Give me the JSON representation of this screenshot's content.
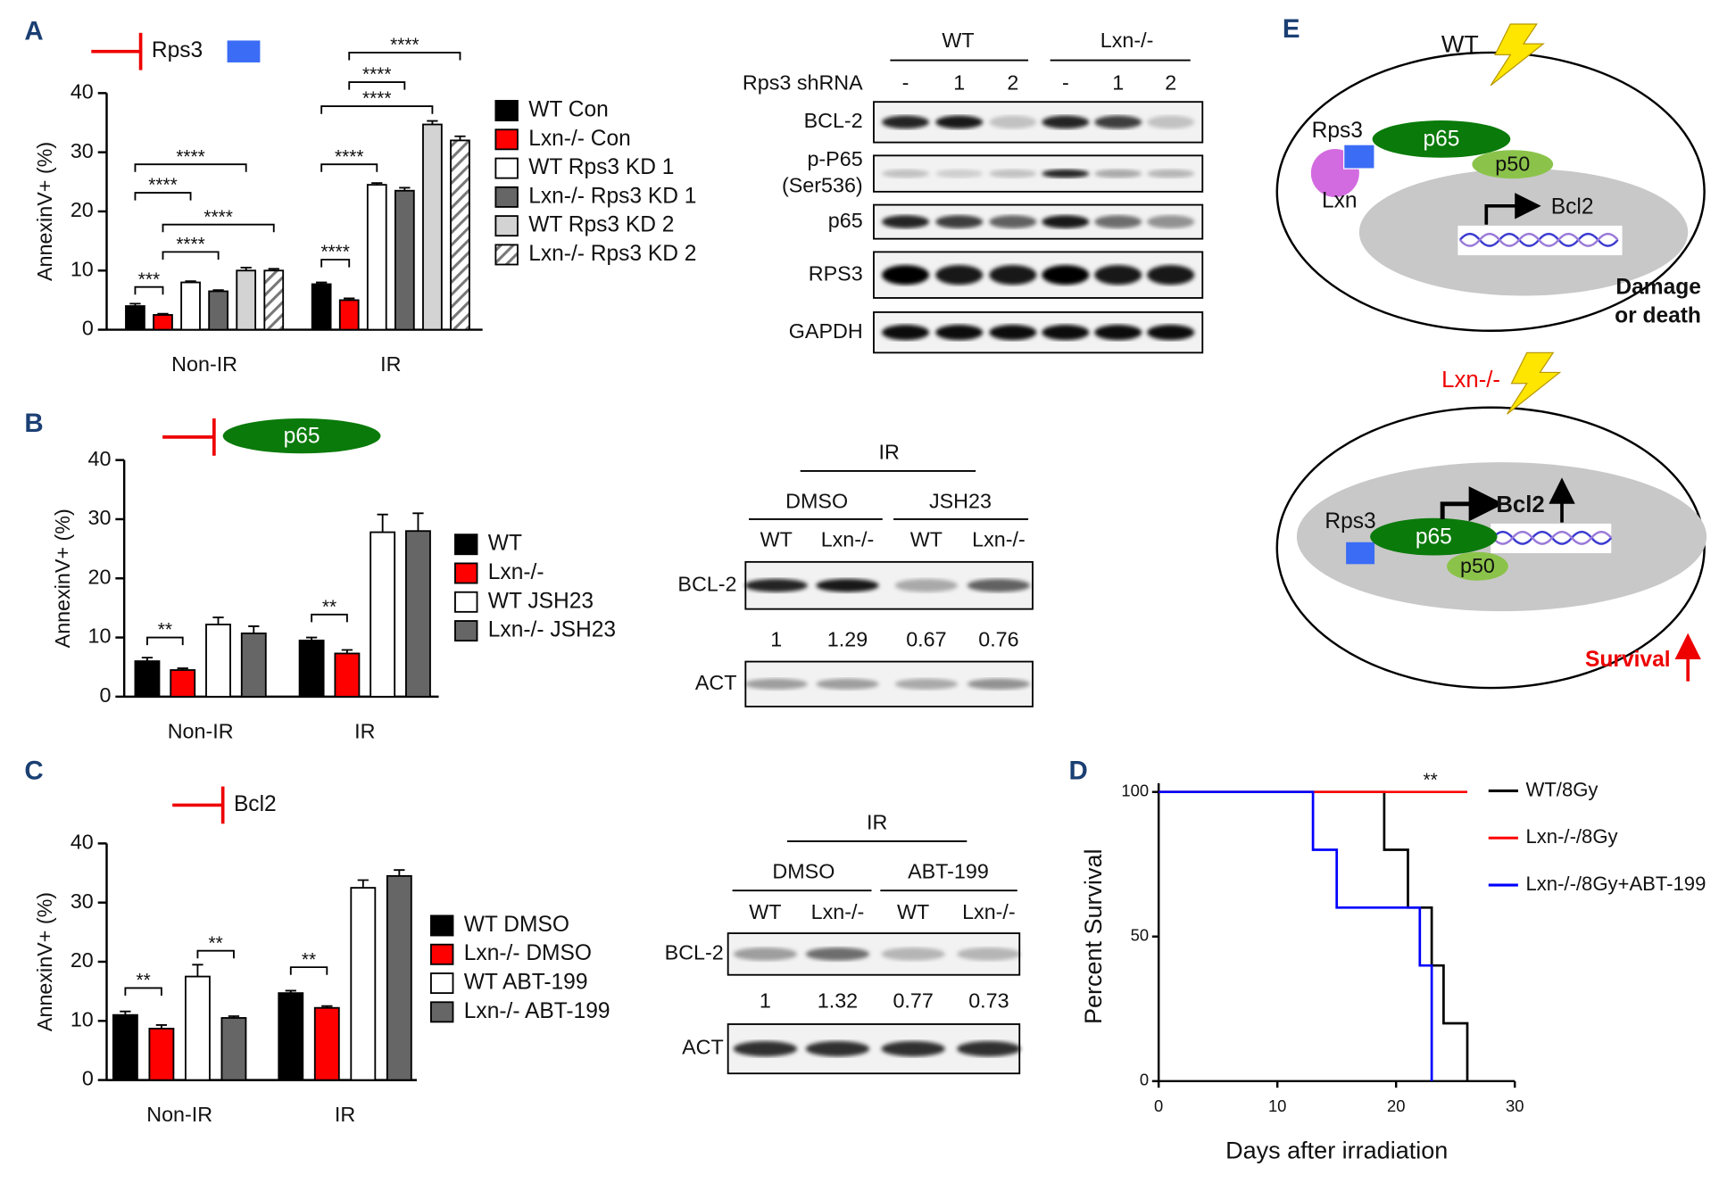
{
  "panels": [
    "A",
    "B",
    "C",
    "D",
    "E"
  ],
  "chart_data": [
    {
      "type": "bar",
      "inhibitor": "Rps3",
      "ylabel": "AnnexinV+ (%)",
      "categories": [
        "Non-IR",
        "IR"
      ],
      "ylim": [
        0,
        40
      ],
      "yticks": [
        0,
        10,
        20,
        30,
        40
      ],
      "series": [
        {
          "name": "WT Con",
          "color": "#000000",
          "values": [
            4,
            7.7
          ],
          "errors": [
            0.4,
            0.3
          ]
        },
        {
          "name": "Lxn-/- Con",
          "color": "#ff0000",
          "values": [
            2.5,
            5
          ],
          "errors": [
            0.2,
            0.3
          ]
        },
        {
          "name": "WT Rps3 KD 1",
          "color": "#ffffff",
          "values": [
            8,
            24.5
          ],
          "errors": [
            0.2,
            0.3
          ]
        },
        {
          "name": "Lxn-/- Rps3 KD 1",
          "color": "#666666",
          "values": [
            6.5,
            23.5
          ],
          "errors": [
            0.2,
            0.5
          ]
        },
        {
          "name": "WT Rps3 KD 2",
          "color": "#d3d3d3",
          "values": [
            10,
            34.7
          ],
          "errors": [
            0.5,
            0.6
          ]
        },
        {
          "name": "Lxn-/- Rps3 KD 2",
          "color": "#777777",
          "hatch": true,
          "values": [
            10,
            32
          ],
          "errors": [
            0.3,
            0.7
          ]
        }
      ],
      "annotations": [
        "***",
        "****",
        "****",
        "****",
        "****",
        "****",
        "****",
        "****",
        "****",
        "****"
      ]
    },
    {
      "type": "bar",
      "inhibitor": "p65",
      "ylabel": "AnnexinV+ (%)",
      "categories": [
        "Non-IR",
        "IR"
      ],
      "ylim": [
        0,
        40
      ],
      "yticks": [
        0,
        10,
        20,
        30,
        40
      ],
      "series": [
        {
          "name": "WT",
          "color": "#000000",
          "values": [
            6,
            9.5
          ],
          "errors": [
            0.6,
            0.5
          ]
        },
        {
          "name": "Lxn-/-",
          "color": "#ff0000",
          "values": [
            4.5,
            7.3
          ],
          "errors": [
            0.3,
            0.6
          ]
        },
        {
          "name": "WT JSH23",
          "color": "#ffffff",
          "values": [
            12.2,
            27.8
          ],
          "errors": [
            1.2,
            3
          ]
        },
        {
          "name": "Lxn-/- JSH23",
          "color": "#666666",
          "values": [
            10.7,
            28
          ],
          "errors": [
            1.2,
            3
          ]
        }
      ],
      "annotations": [
        "**",
        "**"
      ]
    },
    {
      "type": "bar",
      "inhibitor": "Bcl2",
      "ylabel": "AnnexinV+ (%)",
      "categories": [
        "Non-IR",
        "IR"
      ],
      "ylim": [
        0,
        40
      ],
      "yticks": [
        0,
        10,
        20,
        30,
        40
      ],
      "series": [
        {
          "name": "WT DMSO",
          "color": "#000000",
          "values": [
            11,
            14.7
          ],
          "errors": [
            0.6,
            0.4
          ]
        },
        {
          "name": "Lxn-/- DMSO",
          "color": "#ff0000",
          "values": [
            8.7,
            12.2
          ],
          "errors": [
            0.6,
            0.3
          ]
        },
        {
          "name": "WT ABT-199",
          "color": "#ffffff",
          "values": [
            17.5,
            32.5
          ],
          "errors": [
            2,
            1.3
          ]
        },
        {
          "name": "Lxn-/- ABT-199",
          "color": "#666666",
          "values": [
            10.5,
            34.5
          ],
          "errors": [
            0.3,
            1
          ]
        }
      ],
      "annotations": [
        "**",
        "**",
        "**"
      ]
    },
    {
      "type": "line",
      "step": true,
      "xlabel": "Days after irradiation",
      "ylabel": "Percent Survival",
      "xlim": [
        0,
        30
      ],
      "xticks": [
        0,
        10,
        20,
        30
      ],
      "ylim": [
        0,
        100
      ],
      "yticks": [
        0,
        50,
        100
      ],
      "series": [
        {
          "name": "WT/8Gy",
          "color": "#000000",
          "x": [
            0,
            19,
            21,
            23,
            24,
            26
          ],
          "values": [
            100,
            80,
            60,
            40,
            20,
            0
          ]
        },
        {
          "name": "Lxn-/-/8Gy",
          "color": "#ff0000",
          "x": [
            0,
            26
          ],
          "values": [
            100,
            100
          ]
        },
        {
          "name": "Lxn-/-/8Gy+ABT-199",
          "color": "#0000ff",
          "x": [
            0,
            13,
            15,
            22,
            23
          ],
          "values": [
            100,
            80,
            60,
            40,
            0
          ]
        }
      ],
      "annotations": [
        "**"
      ]
    }
  ],
  "blots": [
    {
      "groups": [
        "WT",
        "Lxn-/-"
      ],
      "row_title": "Rps3 shRNA",
      "lanes": [
        "-",
        "1",
        "2",
        "-",
        "1",
        "2"
      ],
      "rows": [
        [
          "BCL-2"
        ],
        [
          "p-P65",
          "(Ser536)"
        ],
        [
          "p65"
        ],
        [
          "RPS3"
        ],
        [
          "GAPDH"
        ]
      ]
    },
    {
      "treatment": "IR",
      "groups": [
        "DMSO",
        "JSH23"
      ],
      "lanes": [
        "WT",
        "Lxn-/-",
        "WT",
        "Lxn-/-"
      ],
      "rows": [
        [
          "BCL-2"
        ],
        [
          "ACT"
        ]
      ],
      "quantification": [
        1,
        1.29,
        0.67,
        0.76
      ]
    },
    {
      "treatment": "IR",
      "groups": [
        "DMSO",
        "ABT-199"
      ],
      "lanes": [
        "WT",
        "Lxn-/-",
        "WT",
        "Lxn-/-"
      ],
      "rows": [
        [
          "BCL-2"
        ],
        [
          "ACT"
        ]
      ],
      "quantification": [
        1,
        1.32,
        0.77,
        0.73
      ]
    }
  ],
  "diagram": {
    "top": {
      "label": "WT",
      "rps3": "Rps3",
      "lxn": "Lxn",
      "p65": "p65",
      "p50": "p50",
      "gene": "Bcl2",
      "outcome": [
        "Damage",
        "or death"
      ]
    },
    "bottom": {
      "label": "Lxn-/-",
      "rps3": "Rps3",
      "p65": "p65",
      "p50": "p50",
      "gene": "Bcl2",
      "outcome": "Survival"
    }
  }
}
